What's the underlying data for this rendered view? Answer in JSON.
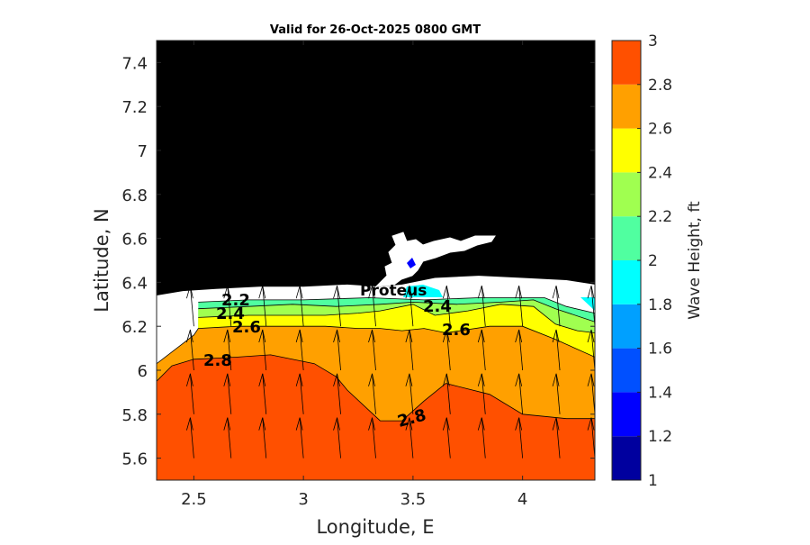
{
  "chart_data": {
    "type": "contourf",
    "title": "Valid for 26-Oct-2025 0800 GMT",
    "xlabel": "Longitude, E",
    "ylabel": "Latitude, N",
    "xlim": [
      2.33,
      4.33
    ],
    "ylim": [
      5.5,
      7.5
    ],
    "xticks": [
      "2.5",
      "3",
      "3.5",
      "4"
    ],
    "xtick_values": [
      2.5,
      3,
      3.5,
      4
    ],
    "yticks": [
      "5.6",
      "5.8",
      "6",
      "6.2",
      "6.4",
      "6.6",
      "6.8",
      "7",
      "7.2",
      "7.4"
    ],
    "ytick_values": [
      5.6,
      5.8,
      6.0,
      6.2,
      6.4,
      6.6,
      6.8,
      7.0,
      7.2,
      7.4
    ],
    "colorbar": {
      "label": "Wave Height, ft",
      "levels": [
        1,
        1.2,
        1.4,
        1.6,
        1.8,
        2,
        2.2,
        2.4,
        2.6,
        2.8,
        3
      ],
      "ticks": [
        "1",
        "1.2",
        "1.4",
        "1.6",
        "1.8",
        "2",
        "2.2",
        "2.4",
        "2.6",
        "2.8",
        "3"
      ],
      "colors": [
        "#00009f",
        "#0000ff",
        "#0050ff",
        "#00a0ff",
        "#00ffff",
        "#50ffa0",
        "#a0ff50",
        "#ffff00",
        "#ffa000",
        "#ff5000"
      ]
    },
    "bands": [
      {
        "range": [
          2.8,
          3.0
        ],
        "color": "#ff5000",
        "lower_boundary": [
          [
            2.33,
            5.95
          ],
          [
            2.4,
            6.02
          ],
          [
            2.5,
            6.05
          ],
          [
            2.7,
            6.06
          ],
          [
            2.85,
            6.07
          ],
          [
            3.05,
            6.03
          ],
          [
            3.15,
            5.97
          ],
          [
            3.2,
            5.91
          ],
          [
            3.35,
            5.77
          ],
          [
            3.45,
            5.77
          ],
          [
            3.55,
            5.86
          ],
          [
            3.65,
            5.94
          ],
          [
            3.85,
            5.89
          ],
          [
            4.0,
            5.8
          ],
          [
            4.2,
            5.78
          ],
          [
            4.33,
            5.78
          ]
        ]
      },
      {
        "range": [
          2.6,
          2.8
        ],
        "color": "#ffa000",
        "lower_boundary": [
          [
            2.33,
            6.03
          ],
          [
            2.5,
            6.16
          ],
          [
            2.52,
            6.19
          ],
          [
            2.7,
            6.2
          ],
          [
            2.9,
            6.2
          ],
          [
            3.1,
            6.2
          ],
          [
            3.25,
            6.19
          ],
          [
            3.35,
            6.19
          ],
          [
            3.45,
            6.18
          ],
          [
            3.55,
            6.19
          ],
          [
            3.65,
            6.17
          ],
          [
            3.85,
            6.2
          ],
          [
            4.0,
            6.2
          ],
          [
            4.15,
            6.14
          ],
          [
            4.33,
            6.06
          ]
        ]
      },
      {
        "range": [
          2.4,
          2.6
        ],
        "color": "#ffff00",
        "lower_boundary": [
          [
            2.52,
            6.24
          ],
          [
            2.75,
            6.25
          ],
          [
            2.95,
            6.25
          ],
          [
            3.1,
            6.25
          ],
          [
            3.25,
            6.26
          ],
          [
            3.35,
            6.27
          ],
          [
            3.5,
            6.3
          ],
          [
            3.6,
            6.25
          ],
          [
            3.75,
            6.27
          ],
          [
            3.9,
            6.3
          ],
          [
            4.05,
            6.29
          ],
          [
            4.15,
            6.21
          ],
          [
            4.25,
            6.18
          ],
          [
            4.33,
            6.17
          ]
        ]
      },
      {
        "range": [
          2.2,
          2.4
        ],
        "color": "#a0ff50",
        "lower_boundary": [
          [
            2.52,
            6.28
          ],
          [
            2.75,
            6.29
          ],
          [
            2.95,
            6.3
          ],
          [
            3.15,
            6.29
          ],
          [
            3.35,
            6.3
          ],
          [
            3.5,
            6.31
          ],
          [
            3.7,
            6.3
          ],
          [
            3.9,
            6.31
          ],
          [
            4.05,
            6.32
          ],
          [
            4.15,
            6.28
          ],
          [
            4.33,
            6.22
          ]
        ]
      },
      {
        "range": [
          2.0,
          2.2
        ],
        "color": "#50ffa0",
        "lower_boundary": [
          [
            2.52,
            6.31
          ],
          [
            2.75,
            6.32
          ],
          [
            3.0,
            6.32
          ],
          [
            3.3,
            6.33
          ],
          [
            3.55,
            6.32
          ],
          [
            3.8,
            6.33
          ],
          [
            4.1,
            6.33
          ],
          [
            4.2,
            6.29
          ],
          [
            4.33,
            6.26
          ]
        ]
      },
      {
        "range": [
          1.8,
          2.0
        ],
        "color": "#00ffff",
        "region": "near-shore patch south of Proteus and along the east edge"
      }
    ],
    "contour_labels": [
      "2.2",
      "2.4",
      "2.6",
      "2.8",
      "2.4",
      "2.6",
      "2.8"
    ],
    "annotations": [
      "Proteus"
    ],
    "land_color": "#000000",
    "vector_field": {
      "variable": "wave direction",
      "direction": "toward north-northwest",
      "lon": [
        2.33,
        2.5,
        2.67,
        2.83,
        3.0,
        3.17,
        3.33,
        3.5,
        3.67,
        3.83,
        4.0,
        4.17,
        4.33
      ],
      "lat": [
        5.6,
        5.8,
        6.0,
        6.2
      ]
    }
  }
}
